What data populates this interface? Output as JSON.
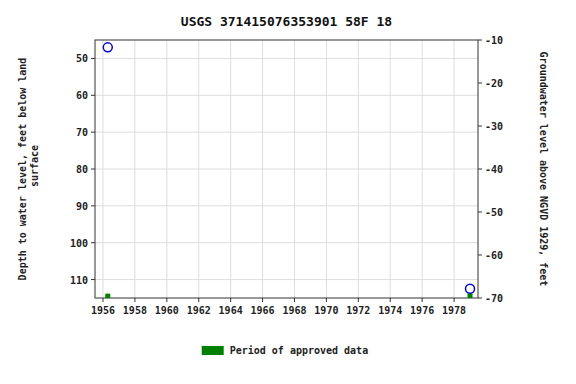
{
  "chart_data": {
    "type": "scatter",
    "title": "USGS 371415076353901 58F 18",
    "y_label": "Depth to water level, feet below land\n surface",
    "y2_label": "Groundwater level above NGVD 1929, feet",
    "xlim": [
      1955.5,
      1979.5
    ],
    "xticks": [
      1956,
      1958,
      1960,
      1962,
      1964,
      1966,
      1968,
      1970,
      1972,
      1974,
      1976,
      1978
    ],
    "ylim": [
      115,
      45
    ],
    "yticks": [
      50,
      60,
      70,
      80,
      90,
      100,
      110
    ],
    "y2lim": [
      -70,
      -10
    ],
    "y2ticks": [
      -10,
      -20,
      -30,
      -40,
      -50,
      -60,
      -70
    ],
    "grid": true,
    "legend": "bottom",
    "series": [
      {
        "x": [
          1956.3,
          1979.0
        ],
        "values": [
          47.0,
          112.5
        ],
        "color": "#0000cc",
        "marker": "circle"
      },
      {
        "name": "Period of approved data",
        "x": [
          1956.3,
          1979.0
        ],
        "values": [
          114.5,
          114.5
        ],
        "color": "#008000",
        "marker": "square"
      }
    ]
  }
}
